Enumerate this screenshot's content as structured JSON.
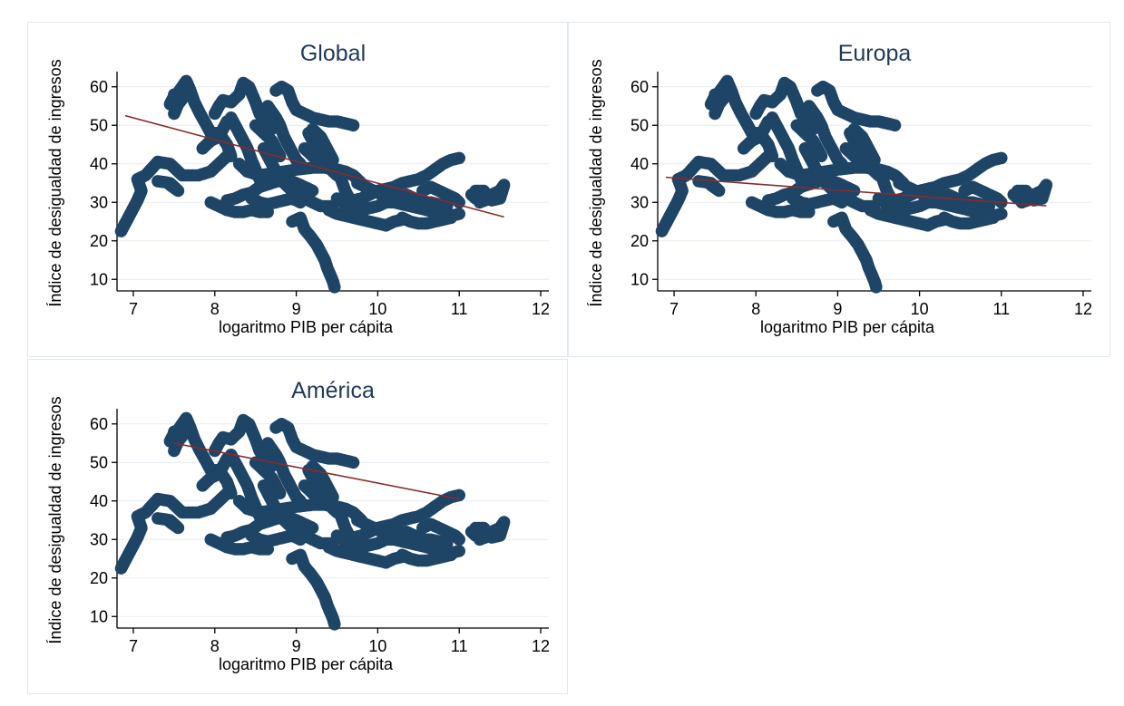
{
  "chart_data": [
    {
      "type": "scatter",
      "title": "Global",
      "xlabel": "logaritmo PIB per cápita",
      "ylabel": "Índice de desigualdad de ingresos",
      "xlim": [
        6.8,
        12.1
      ],
      "ylim": [
        7,
        63
      ],
      "xticks": [
        7,
        8,
        9,
        10,
        11,
        12
      ],
      "yticks": [
        10,
        20,
        30,
        40,
        50,
        60
      ],
      "grid": true,
      "fit_line": {
        "x": [
          6.9,
          11.55
        ],
        "y": [
          52.5,
          26.2
        ],
        "color": "#8b2b2b"
      }
    },
    {
      "type": "scatter",
      "title": "Europa",
      "xlabel": "logaritmo PIB per cápita",
      "ylabel": "Índice de desigualdad de ingresos",
      "xlim": [
        6.8,
        12.1
      ],
      "ylim": [
        7,
        63
      ],
      "xticks": [
        7,
        8,
        9,
        10,
        11,
        12
      ],
      "yticks": [
        10,
        20,
        30,
        40,
        50,
        60
      ],
      "grid": true,
      "fit_line": {
        "x": [
          6.9,
          11.55
        ],
        "y": [
          36.5,
          29.1
        ],
        "color": "#8b2b2b"
      }
    },
    {
      "type": "scatter",
      "title": "América",
      "xlabel": "logaritmo PIB per cápita",
      "ylabel": "Índice de desigualdad de ingresos",
      "xlim": [
        6.8,
        12.1
      ],
      "ylim": [
        7,
        63
      ],
      "xticks": [
        7,
        8,
        9,
        10,
        11,
        12
      ],
      "yticks": [
        10,
        20,
        30,
        40,
        50,
        60
      ],
      "grid": true,
      "fit_line": {
        "x": [
          7.5,
          11.0
        ],
        "y": [
          55.0,
          40.5
        ],
        "color": "#8b2b2b"
      }
    }
  ],
  "points": {
    "color": "#1e4466",
    "paths": [
      [
        [
          6.85,
          22.5
        ],
        [
          6.95,
          26.5
        ],
        [
          7.05,
          30.5
        ],
        [
          7.1,
          33
        ],
        [
          7.05,
          36
        ],
        [
          7.15,
          37
        ],
        [
          7.3,
          40.5
        ],
        [
          7.45,
          40
        ],
        [
          7.55,
          38
        ],
        [
          7.6,
          37
        ],
        [
          7.8,
          37
        ],
        [
          7.95,
          38
        ],
        [
          8.05,
          40
        ],
        [
          8.15,
          42
        ]
      ],
      [
        [
          7.3,
          35.5
        ],
        [
          7.45,
          35
        ],
        [
          7.55,
          33
        ],
        [
          7.45,
          34.5
        ]
      ],
      [
        [
          7.45,
          55.5
        ],
        [
          7.5,
          57.5
        ],
        [
          7.55,
          58.5
        ],
        [
          7.6,
          60
        ],
        [
          7.65,
          61.5
        ],
        [
          7.7,
          59
        ],
        [
          7.75,
          56
        ],
        [
          7.82,
          53
        ],
        [
          7.9,
          50
        ],
        [
          7.95,
          48
        ],
        [
          8.05,
          48
        ],
        [
          8.15,
          45
        ],
        [
          8.2,
          42
        ]
      ],
      [
        [
          7.5,
          53
        ],
        [
          7.55,
          55.5
        ],
        [
          7.6,
          56.8
        ],
        [
          7.5,
          58
        ]
      ],
      [
        [
          7.95,
          30
        ],
        [
          8.05,
          29
        ],
        [
          8.15,
          28
        ],
        [
          8.25,
          27.5
        ],
        [
          8.35,
          27.5
        ],
        [
          8.45,
          28
        ],
        [
          8.55,
          27.5
        ],
        [
          8.65,
          27.5
        ]
      ],
      [
        [
          8.15,
          30.5
        ],
        [
          8.25,
          31
        ],
        [
          8.35,
          32
        ],
        [
          8.45,
          32.5
        ],
        [
          8.55,
          34
        ],
        [
          8.7,
          35
        ],
        [
          8.85,
          36
        ],
        [
          9.0,
          35
        ],
        [
          9.1,
          34
        ],
        [
          9.2,
          33
        ]
      ],
      [
        [
          8.0,
          53
        ],
        [
          8.05,
          55
        ],
        [
          8.1,
          56.5
        ],
        [
          8.2,
          56
        ],
        [
          8.3,
          58
        ],
        [
          8.35,
          61
        ],
        [
          8.42,
          60
        ],
        [
          8.5,
          56
        ],
        [
          8.55,
          53
        ],
        [
          8.62,
          51
        ],
        [
          8.7,
          49
        ]
      ],
      [
        [
          8.2,
          52
        ],
        [
          8.25,
          50
        ],
        [
          8.3,
          48
        ],
        [
          8.35,
          46
        ],
        [
          8.4,
          44
        ],
        [
          8.45,
          41
        ],
        [
          8.5,
          38.5
        ],
        [
          8.55,
          36
        ]
      ],
      [
        [
          8.3,
          40
        ],
        [
          8.4,
          38
        ],
        [
          8.55,
          37
        ],
        [
          8.7,
          37.5
        ],
        [
          8.85,
          38
        ],
        [
          9.0,
          38.5
        ],
        [
          9.2,
          39
        ],
        [
          9.35,
          39
        ],
        [
          9.5,
          38.5
        ],
        [
          9.6,
          38
        ],
        [
          9.7,
          37
        ],
        [
          9.75,
          36
        ],
        [
          9.8,
          35
        ]
      ],
      [
        [
          8.75,
          59
        ],
        [
          8.82,
          60
        ],
        [
          8.9,
          59
        ],
        [
          8.95,
          56
        ],
        [
          9.0,
          54
        ],
        [
          9.1,
          53
        ],
        [
          9.2,
          52
        ],
        [
          9.3,
          51.5
        ],
        [
          9.4,
          51
        ],
        [
          9.5,
          51
        ],
        [
          9.6,
          50.5
        ],
        [
          9.7,
          50
        ]
      ],
      [
        [
          8.65,
          55
        ],
        [
          8.75,
          52
        ],
        [
          8.8,
          50
        ],
        [
          8.85,
          47
        ],
        [
          8.9,
          45
        ],
        [
          8.95,
          43
        ],
        [
          9.0,
          41
        ],
        [
          9.05,
          40
        ]
      ],
      [
        [
          8.85,
          38
        ],
        [
          8.9,
          36
        ],
        [
          8.95,
          35
        ],
        [
          9.0,
          33
        ],
        [
          9.1,
          31
        ],
        [
          9.2,
          30
        ],
        [
          9.3,
          29
        ],
        [
          9.45,
          29
        ]
      ],
      [
        [
          8.95,
          25
        ],
        [
          9.05,
          26
        ],
        [
          9.1,
          23
        ],
        [
          9.18,
          21
        ],
        [
          9.25,
          19
        ],
        [
          9.3,
          17
        ],
        [
          9.35,
          15
        ],
        [
          9.38,
          13
        ],
        [
          9.42,
          11
        ],
        [
          9.45,
          9.5
        ],
        [
          9.47,
          8
        ]
      ],
      [
        [
          9.15,
          48
        ],
        [
          9.2,
          46
        ],
        [
          9.3,
          44
        ],
        [
          9.35,
          42
        ],
        [
          9.4,
          40
        ],
        [
          9.5,
          38
        ],
        [
          9.55,
          36
        ],
        [
          9.6,
          33
        ],
        [
          9.65,
          31
        ]
      ],
      [
        [
          9.1,
          44
        ],
        [
          9.2,
          42
        ],
        [
          9.3,
          40.5
        ],
        [
          9.4,
          39
        ],
        [
          9.5,
          37
        ]
      ],
      [
        [
          9.4,
          28
        ],
        [
          9.5,
          27
        ],
        [
          9.6,
          26.5
        ],
        [
          9.7,
          26
        ],
        [
          9.8,
          25.5
        ],
        [
          9.9,
          25
        ],
        [
          10.0,
          24.5
        ],
        [
          10.1,
          24
        ],
        [
          10.2,
          25
        ],
        [
          10.3,
          25.5
        ]
      ],
      [
        [
          9.5,
          31
        ],
        [
          9.6,
          30
        ],
        [
          9.7,
          30.5
        ],
        [
          9.8,
          31
        ],
        [
          9.9,
          32
        ],
        [
          10.0,
          33
        ],
        [
          10.1,
          33.5
        ],
        [
          10.2,
          34
        ],
        [
          10.3,
          35
        ],
        [
          10.4,
          35.5
        ],
        [
          10.5,
          36
        ],
        [
          10.6,
          37
        ],
        [
          10.7,
          38.5
        ],
        [
          10.8,
          40
        ],
        [
          10.9,
          41
        ],
        [
          11.0,
          41.5
        ]
      ],
      [
        [
          9.6,
          29
        ],
        [
          9.7,
          28.5
        ],
        [
          9.8,
          28
        ],
        [
          9.9,
          28.5
        ],
        [
          10.0,
          29
        ],
        [
          10.1,
          30
        ],
        [
          10.2,
          30
        ],
        [
          10.3,
          29.5
        ],
        [
          10.4,
          29
        ],
        [
          10.5,
          28.5
        ],
        [
          10.6,
          28
        ],
        [
          10.7,
          27.5
        ],
        [
          10.8,
          27
        ],
        [
          10.9,
          26.5
        ],
        [
          11.0,
          27
        ]
      ],
      [
        [
          9.75,
          35
        ],
        [
          9.85,
          34
        ],
        [
          9.95,
          33
        ],
        [
          10.05,
          32
        ],
        [
          10.15,
          31
        ],
        [
          10.25,
          31.5
        ],
        [
          10.35,
          32
        ],
        [
          10.45,
          31
        ],
        [
          10.55,
          30
        ],
        [
          10.65,
          30
        ],
        [
          10.75,
          29.5
        ],
        [
          10.85,
          29
        ]
      ],
      [
        [
          10.3,
          26
        ],
        [
          10.4,
          25
        ],
        [
          10.5,
          24.5
        ],
        [
          10.6,
          24.5
        ],
        [
          10.7,
          25
        ],
        [
          10.8,
          25.5
        ],
        [
          10.9,
          26
        ]
      ],
      [
        [
          10.55,
          33
        ],
        [
          10.65,
          34
        ],
        [
          10.75,
          33
        ],
        [
          10.85,
          32
        ],
        [
          10.95,
          31
        ],
        [
          11.0,
          30
        ]
      ],
      [
        [
          11.15,
          32
        ],
        [
          11.2,
          31
        ],
        [
          11.3,
          31.5
        ],
        [
          11.4,
          32
        ],
        [
          11.5,
          33
        ],
        [
          11.55,
          34.5
        ],
        [
          11.5,
          31
        ],
        [
          11.4,
          30.5
        ],
        [
          11.3,
          33
        ],
        [
          11.2,
          33
        ],
        [
          11.25,
          30
        ],
        [
          11.45,
          31.5
        ]
      ],
      [
        [
          7.85,
          44
        ],
        [
          7.95,
          46
        ],
        [
          8.05,
          47
        ],
        [
          8.1,
          49
        ],
        [
          8.15,
          51
        ]
      ],
      [
        [
          8.6,
          44
        ],
        [
          8.65,
          42
        ],
        [
          8.7,
          40
        ],
        [
          8.75,
          38
        ],
        [
          8.8,
          36
        ],
        [
          8.9,
          34
        ],
        [
          9.0,
          32
        ],
        [
          9.1,
          31
        ]
      ],
      [
        [
          8.5,
          50
        ],
        [
          8.6,
          48
        ],
        [
          8.7,
          46
        ],
        [
          8.75,
          44
        ],
        [
          8.8,
          42
        ]
      ],
      [
        [
          9.2,
          49
        ],
        [
          9.3,
          47
        ],
        [
          9.35,
          45
        ],
        [
          9.4,
          43
        ],
        [
          9.45,
          41
        ]
      ],
      [
        [
          8.45,
          31
        ],
        [
          8.55,
          30
        ],
        [
          8.65,
          29.5
        ],
        [
          8.75,
          30
        ],
        [
          8.85,
          30.5
        ],
        [
          8.95,
          31
        ],
        [
          9.05,
          30
        ]
      ]
    ]
  }
}
